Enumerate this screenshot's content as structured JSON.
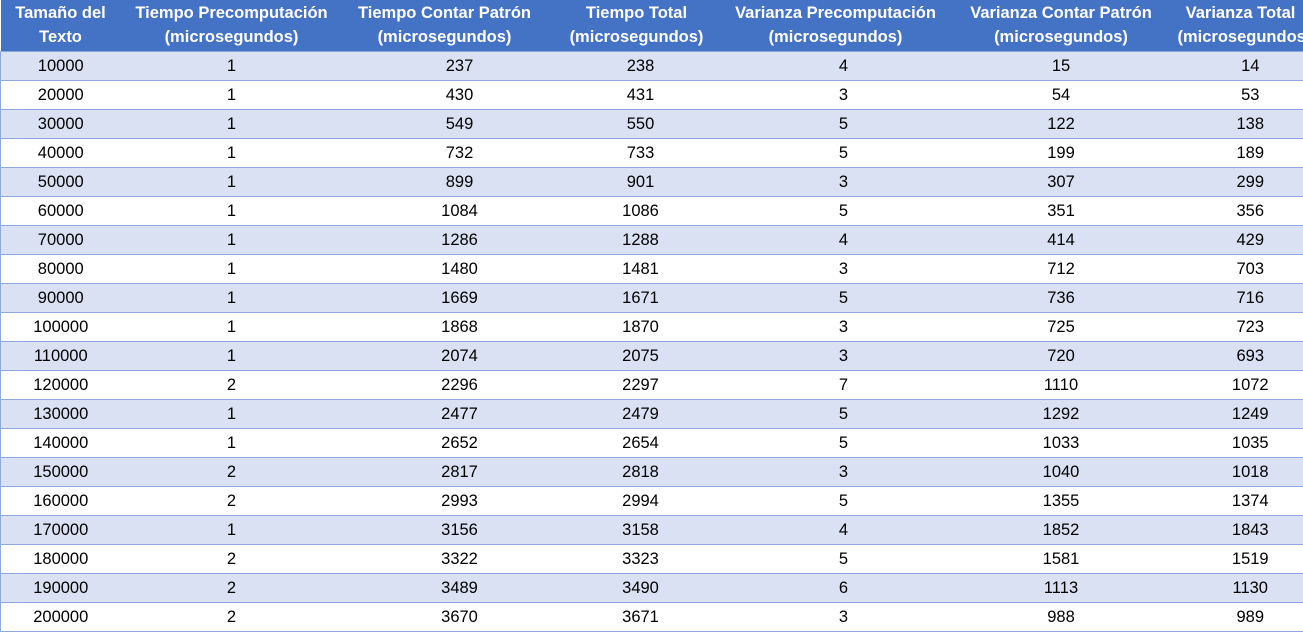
{
  "table": {
    "headers": [
      {
        "line1": "Tamaño del",
        "line2": "Texto"
      },
      {
        "line1": "Tiempo Precomputación",
        "line2": "(microsegundos)"
      },
      {
        "line1": "Tiempo Contar Patrón",
        "line2": "(microsegundos)"
      },
      {
        "line1": "Tiempo Total",
        "line2": "(microsegundos)"
      },
      {
        "line1": "Varianza Precomputación",
        "line2": "(microsegundos)"
      },
      {
        "line1": "Varianza Contar Patrón",
        "line2": "(microsegundos)"
      },
      {
        "line1": "Varianza Total",
        "line2": "(microsegundos)"
      }
    ],
    "rows": [
      [
        "10000",
        "1",
        "237",
        "238",
        "4",
        "15",
        "14"
      ],
      [
        "20000",
        "1",
        "430",
        "431",
        "3",
        "54",
        "53"
      ],
      [
        "30000",
        "1",
        "549",
        "550",
        "5",
        "122",
        "138"
      ],
      [
        "40000",
        "1",
        "732",
        "733",
        "5",
        "199",
        "189"
      ],
      [
        "50000",
        "1",
        "899",
        "901",
        "3",
        "307",
        "299"
      ],
      [
        "60000",
        "1",
        "1084",
        "1086",
        "5",
        "351",
        "356"
      ],
      [
        "70000",
        "1",
        "1286",
        "1288",
        "4",
        "414",
        "429"
      ],
      [
        "80000",
        "1",
        "1480",
        "1481",
        "3",
        "712",
        "703"
      ],
      [
        "90000",
        "1",
        "1669",
        "1671",
        "5",
        "736",
        "716"
      ],
      [
        "100000",
        "1",
        "1868",
        "1870",
        "3",
        "725",
        "723"
      ],
      [
        "110000",
        "1",
        "2074",
        "2075",
        "3",
        "720",
        "693"
      ],
      [
        "120000",
        "2",
        "2296",
        "2297",
        "7",
        "1110",
        "1072"
      ],
      [
        "130000",
        "1",
        "2477",
        "2479",
        "5",
        "1292",
        "1249"
      ],
      [
        "140000",
        "1",
        "2652",
        "2654",
        "5",
        "1033",
        "1035"
      ],
      [
        "150000",
        "2",
        "2817",
        "2818",
        "3",
        "1040",
        "1018"
      ],
      [
        "160000",
        "2",
        "2993",
        "2994",
        "5",
        "1355",
        "1374"
      ],
      [
        "170000",
        "1",
        "3156",
        "3158",
        "4",
        "1852",
        "1843"
      ],
      [
        "180000",
        "2",
        "3322",
        "3323",
        "5",
        "1581",
        "1519"
      ],
      [
        "190000",
        "2",
        "3489",
        "3490",
        "6",
        "1113",
        "1130"
      ],
      [
        "200000",
        "2",
        "3670",
        "3671",
        "3",
        "988",
        "989"
      ]
    ]
  },
  "colors": {
    "header_bg": "#4472c4",
    "header_text": "#ffffff",
    "band_odd": "#d9e1f2",
    "band_even": "#ffffff",
    "border": "#8ea9db"
  }
}
